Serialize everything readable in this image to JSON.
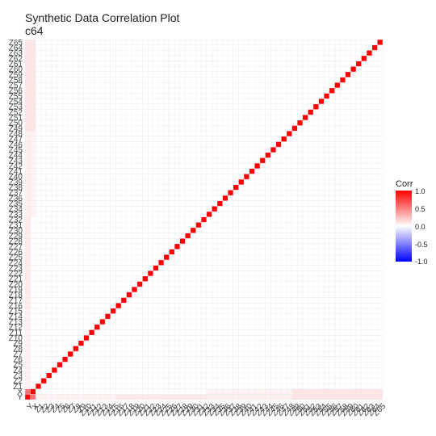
{
  "chart_data": {
    "type": "heatmap",
    "title": "Synthetic Data Correlation Plot",
    "subtitle": "c64",
    "variables": [
      "Y",
      "X",
      "Z1",
      "Z2",
      "Z3",
      "Z4",
      "Z5",
      "Z6",
      "Z7",
      "Z8",
      "Z9",
      "Z10",
      "Z11",
      "Z12",
      "Z13",
      "Z14",
      "Z15",
      "Z16",
      "Z17",
      "Z18",
      "Z19",
      "Z20",
      "Z21",
      "Z22",
      "Z23",
      "Z24",
      "Z25",
      "Z26",
      "Z27",
      "Z28",
      "Z29",
      "Z30",
      "Z31",
      "Z32",
      "Z33",
      "Z34",
      "Z35",
      "Z36",
      "Z37",
      "Z38",
      "Z39",
      "Z40",
      "Z41",
      "Z42",
      "Z43",
      "Z44",
      "Z45",
      "Z46",
      "Z47",
      "Z48",
      "Z49",
      "Z50",
      "Z51",
      "Z52",
      "Z53",
      "Z54",
      "Z55",
      "Z56",
      "Z57",
      "Z58",
      "Z59",
      "Z60",
      "Z61",
      "Z62",
      "Z63",
      "Z64",
      "Z65"
    ],
    "diagonal": 1.0,
    "y_x_corr": 0.55,
    "y_z_corr": {
      "Z1_to_Z15": 0.05,
      "Z16_to_Z32": 0.08,
      "Z33_to_Z48": 0.06,
      "Z49_to_Z65": 0.1
    },
    "x_z_corr": {
      "Z1_to_Z15": 0.0,
      "Z16_to_Z32": 0.0,
      "Z33_to_Z48": 0.05,
      "Z49_to_Z65": 0.1
    },
    "off_diagonal_z_z": 0.0,
    "legend": {
      "title": "Corr",
      "ticks": [
        "1.0",
        "0.5",
        "0.0",
        "-0.5",
        "-1.0"
      ],
      "range": [
        -1,
        1
      ],
      "colors": {
        "high": "#ff0000",
        "mid": "#ffffff",
        "low": "#0000ff"
      }
    }
  }
}
